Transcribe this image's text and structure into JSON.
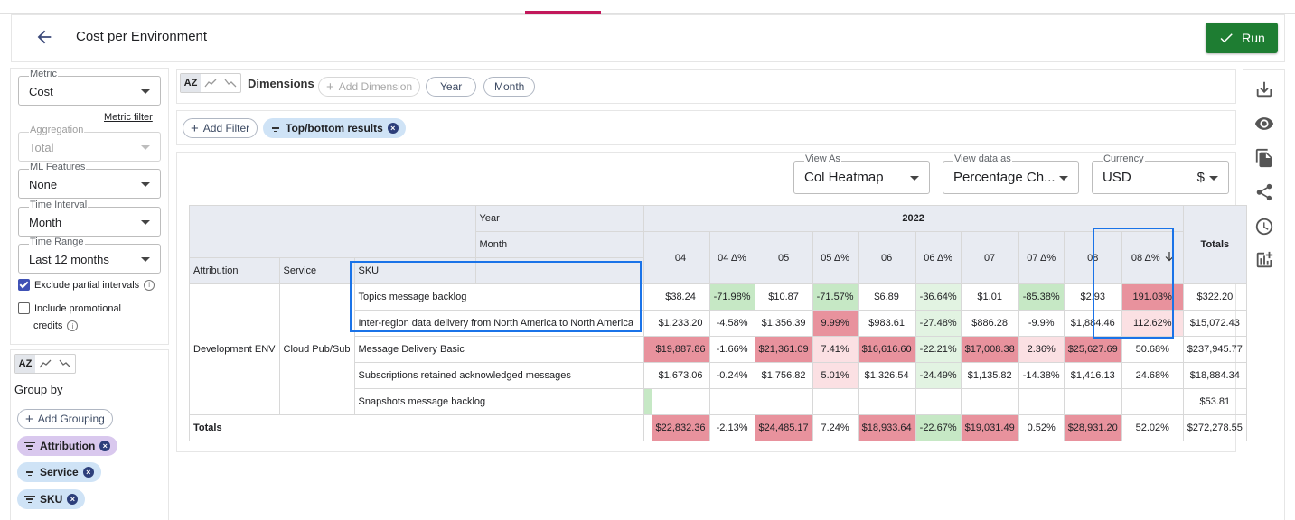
{
  "page": {
    "title": "Cost per Environment",
    "run_label": "Run"
  },
  "left": {
    "metric": {
      "label": "Metric",
      "value": "Cost"
    },
    "metric_filter_link": "Metric filter",
    "aggregation": {
      "label": "Aggregation",
      "value": "Total"
    },
    "ml_features": {
      "label": "ML Features",
      "value": "None"
    },
    "time_interval": {
      "label": "Time Interval",
      "value": "Month"
    },
    "time_range": {
      "label": "Time Range",
      "value": "Last 12 months"
    },
    "exclude_partial": "Exclude partial intervals",
    "include_promo_1": "Include promotional",
    "include_promo_2": "credits",
    "group_by_title": "Group by",
    "add_grouping": "Add Grouping",
    "groupings": [
      "Attribution",
      "Service",
      "SKU"
    ],
    "sort_az": "AZ"
  },
  "dimensions": {
    "sort_az": "AZ",
    "label": "Dimensions",
    "add_dimension": "Add Dimension",
    "chips": [
      "Year",
      "Month"
    ]
  },
  "filters": {
    "add_filter": "Add Filter",
    "chip": "Top/bottom results"
  },
  "view": {
    "view_as": {
      "label": "View As",
      "value": "Col Heatmap"
    },
    "view_data_as": {
      "label": "View data as",
      "value": "Percentage Ch..."
    },
    "currency": {
      "label": "Currency",
      "value": "USD",
      "symbol": "$"
    }
  },
  "colors": {
    "red_strong": "#e8929d",
    "red_mid": "#f2b3bb",
    "red_light": "#fbe0e3",
    "green_strong": "#a8d9a8",
    "green_mid": "#c6e8c5",
    "green_light": "#e2f3e2",
    "run": "#1e7d32",
    "highlight": "#1a73e8"
  },
  "table": {
    "hdr_year": "Year",
    "hdr_month": "Month",
    "year_value": "2022",
    "totals_label": "Totals",
    "col_attribution": "Attribution",
    "col_service": "Service",
    "col_sku": "SKU",
    "months": [
      "04",
      "04 Δ%",
      "05",
      "05 Δ%",
      "06",
      "06 Δ%",
      "07",
      "07 Δ%",
      "08",
      "08 Δ%"
    ],
    "attribution": "Development ENV",
    "service": "Cloud Pub/Sub",
    "rows": [
      {
        "sku": "Topics message backlog",
        "cells": [
          "$38.24",
          "-71.98%",
          "$10.87",
          "-71.57%",
          "$6.89",
          "-36.64%",
          "$1.01",
          "-85.38%",
          "$2.93",
          "191.03%"
        ],
        "total": "$322.20"
      },
      {
        "sku": "Inter-region data delivery from North America to North America",
        "cells": [
          "$1,233.20",
          "-4.58%",
          "$1,356.39",
          "9.99%",
          "$983.61",
          "-27.48%",
          "$886.28",
          "-9.9%",
          "$1,884.46",
          "112.62%"
        ],
        "total": "$15,072.43"
      },
      {
        "sku": "Message Delivery Basic",
        "cells": [
          "$19,887.86",
          "-1.66%",
          "$21,361.09",
          "7.41%",
          "$16,616.60",
          "-22.21%",
          "$17,008.38",
          "2.36%",
          "$25,627.69",
          "50.68%"
        ],
        "total": "$237,945.77"
      },
      {
        "sku": "Subscriptions retained acknowledged messages",
        "cells": [
          "$1,673.06",
          "-0.24%",
          "$1,756.82",
          "5.01%",
          "$1,326.54",
          "-24.49%",
          "$1,135.82",
          "-14.38%",
          "$1,416.13",
          "24.68%"
        ],
        "total": "$18,884.34"
      },
      {
        "sku": "Snapshots message backlog",
        "cells": [
          "",
          "",
          "",
          "",
          "",
          "",
          "",
          "",
          "",
          ""
        ],
        "total": "$53.81"
      }
    ],
    "totals_row": {
      "cells": [
        "$22,832.36",
        "-2.13%",
        "$24,485.17",
        "7.24%",
        "$18,933.64",
        "-22.67%",
        "$19,031.49",
        "0.52%",
        "$28,931.20",
        "52.02%"
      ],
      "total": "$272,278.55"
    }
  }
}
